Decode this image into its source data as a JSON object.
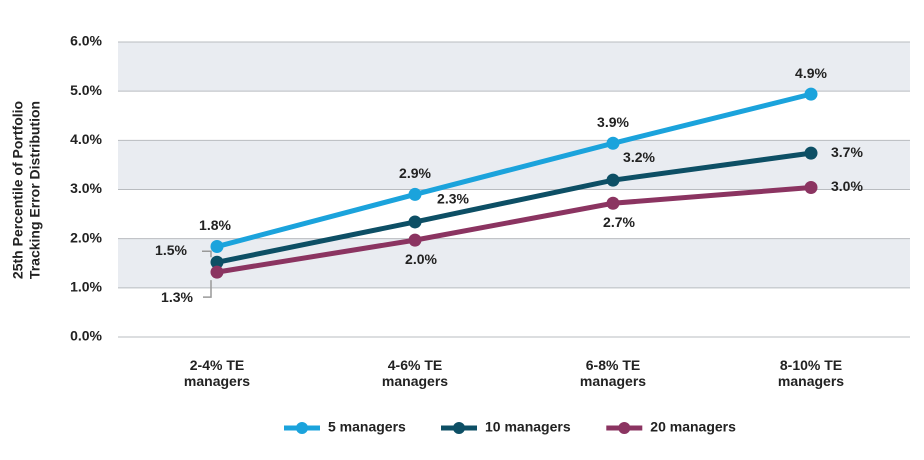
{
  "chart_data": {
    "type": "line",
    "y_label": "25th Percentile of Portfolio Tracking Error Distribution",
    "categories": [
      "2-4% TE managers",
      "4-6% TE managers",
      "6-8% TE managers",
      "8-10% TE managers"
    ],
    "series": [
      {
        "name": "5 managers",
        "color": "#1ba3dc",
        "values": [
          1.84,
          2.9,
          3.94,
          4.94
        ],
        "value_labels": [
          "1.8%",
          "2.9%",
          "3.9%",
          "4.9%"
        ]
      },
      {
        "name": "10 managers",
        "color": "#0d4f65",
        "values": [
          1.52,
          2.34,
          3.19,
          3.74
        ],
        "value_labels": [
          "1.5%",
          "2.3%",
          "3.2%",
          "3.7%"
        ]
      },
      {
        "name": "20 managers",
        "color": "#8b3461",
        "values": [
          1.32,
          1.97,
          2.72,
          3.04
        ],
        "value_labels": [
          "1.3%",
          "2.0%",
          "2.7%",
          "3.0%"
        ]
      }
    ],
    "ylim": [
      0,
      6
    ],
    "yticks": [
      {
        "value": 0,
        "label": "0.0%"
      },
      {
        "value": 1,
        "label": "1.0%"
      },
      {
        "value": 2,
        "label": "2.0%"
      },
      {
        "value": 3,
        "label": "3.0%"
      },
      {
        "value": 4,
        "label": "4.0%"
      },
      {
        "value": 5,
        "label": "5.0%"
      },
      {
        "value": 6,
        "label": "6.0%"
      }
    ],
    "grid": true,
    "legend": "bottom"
  }
}
